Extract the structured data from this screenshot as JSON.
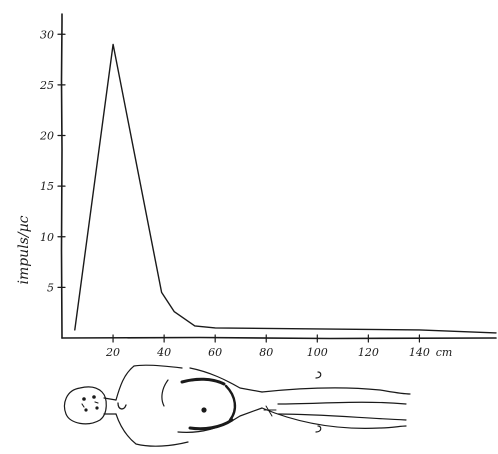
{
  "chart_data": {
    "type": "line",
    "title": "",
    "xlabel": "",
    "ylabel": "impuls/µc",
    "x_unit_label": "cm",
    "xlim": [
      0,
      170
    ],
    "ylim": [
      0,
      32
    ],
    "xticks": [
      20,
      40,
      60,
      80,
      100,
      120,
      140
    ],
    "xtick_labels": [
      "20",
      "40",
      "60",
      "80",
      "100",
      "120",
      "140"
    ],
    "yticks": [
      5,
      10,
      15,
      20,
      25,
      30
    ],
    "ytick_labels": [
      "5",
      "10",
      "15",
      "20",
      "25",
      "30"
    ],
    "grid": false,
    "legend": "none",
    "series": [
      {
        "x": [
          5,
          20,
          39,
          44,
          52,
          60,
          80,
          100,
          120,
          140,
          160,
          170
        ],
        "y": [
          0.8,
          29,
          4.5,
          2.6,
          1.2,
          1.0,
          0.95,
          0.9,
          0.85,
          0.8,
          0.6,
          0.5
        ]
      }
    ]
  },
  "illustration": {
    "icon": "human-body-outline-icon"
  },
  "colors": {
    "ink": "#1a1a1a",
    "background": "#ffffff"
  }
}
